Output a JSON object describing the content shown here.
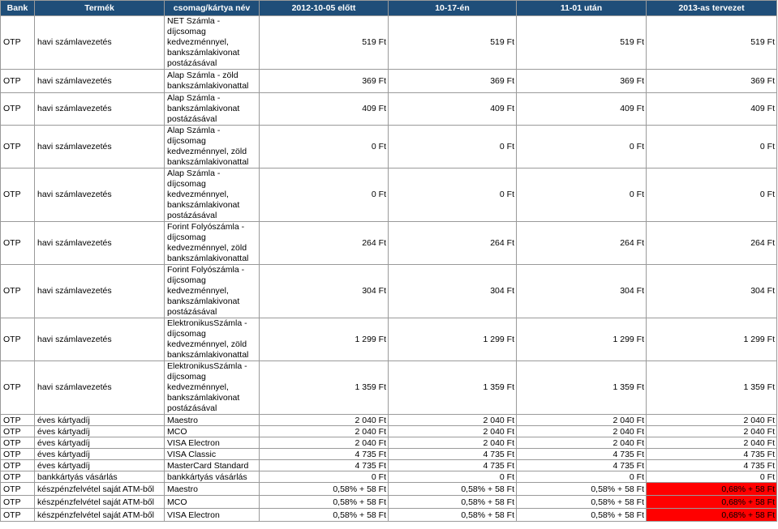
{
  "colors": {
    "header_bg": "#1f4e79",
    "header_fg": "#ffffff",
    "highlight": "#ff0000"
  },
  "headers": [
    "Bank",
    "Termék",
    "csomag/kártya név",
    "2012-10-05 előtt",
    "10-17-én",
    "11-01 után",
    "2013-as tervezet"
  ],
  "rows": [
    {
      "bank": "OTP",
      "product": "havi számlavezetés",
      "name": "NET Számla - díjcsomag kedvezménnyel, bankszámlakivonat postázásával",
      "v1": "519 Ft",
      "v2": "519 Ft",
      "v3": "519 Ft",
      "v4": "519 Ft"
    },
    {
      "bank": "OTP",
      "product": "havi számlavezetés",
      "name": "Alap Számla - zöld bankszámlakivonattal",
      "v1": "369 Ft",
      "v2": "369 Ft",
      "v3": "369 Ft",
      "v4": "369 Ft"
    },
    {
      "bank": "OTP",
      "product": "havi számlavezetés",
      "name": "Alap Számla - bankszámlakivonat postázásával",
      "v1": "409 Ft",
      "v2": "409 Ft",
      "v3": "409 Ft",
      "v4": "409 Ft"
    },
    {
      "bank": "OTP",
      "product": "havi számlavezetés",
      "name": "Alap Számla - díjcsomag kedvezménnyel, zöld bankszámlakivonattal",
      "v1": "0 Ft",
      "v2": "0 Ft",
      "v3": "0 Ft",
      "v4": "0 Ft"
    },
    {
      "bank": "OTP",
      "product": "havi számlavezetés",
      "name": "Alap Számla - díjcsomag kedvezménnyel, bankszámlakivonat postázásával",
      "v1": "0 Ft",
      "v2": "0 Ft",
      "v3": "0 Ft",
      "v4": "0 Ft"
    },
    {
      "bank": "OTP",
      "product": "havi számlavezetés",
      "name": "Forint Folyószámla - díjcsomag kedvezménnyel, zöld bankszámlakivonattal",
      "v1": "264 Ft",
      "v2": "264 Ft",
      "v3": "264 Ft",
      "v4": "264 Ft"
    },
    {
      "bank": "OTP",
      "product": "havi számlavezetés",
      "name": "Forint Folyószámla - díjcsomag kedvezménnyel, bankszámlakivonat postázásával",
      "v1": "304 Ft",
      "v2": "304 Ft",
      "v3": "304 Ft",
      "v4": "304 Ft"
    },
    {
      "bank": "OTP",
      "product": "havi számlavezetés",
      "name": "ElektronikusSzámla - díjcsomag kedvezménnyel, zöld bankszámlakivonattal",
      "v1": "1 299 Ft",
      "v2": "1 299 Ft",
      "v3": "1 299 Ft",
      "v4": "1 299 Ft"
    },
    {
      "bank": "OTP",
      "product": "havi számlavezetés",
      "name": "ElektronikusSzámla - díjcsomag kedvezménnyel, bankszámlakivonat postázásával",
      "v1": "1 359 Ft",
      "v2": "1 359 Ft",
      "v3": "1 359 Ft",
      "v4": "1 359 Ft"
    },
    {
      "bank": "OTP",
      "product": "éves kártyadíj",
      "name": "Maestro",
      "v1": "2 040 Ft",
      "v2": "2 040 Ft",
      "v3": "2 040 Ft",
      "v4": "2 040 Ft"
    },
    {
      "bank": "OTP",
      "product": "éves kártyadíj",
      "name": "MCO",
      "v1": "2 040 Ft",
      "v2": "2 040 Ft",
      "v3": "2 040 Ft",
      "v4": "2 040 Ft"
    },
    {
      "bank": "OTP",
      "product": "éves kártyadíj",
      "name": "VISA Electron",
      "v1": "2 040 Ft",
      "v2": "2 040 Ft",
      "v3": "2 040 Ft",
      "v4": "2 040 Ft"
    },
    {
      "bank": "OTP",
      "product": "éves kártyadíj",
      "name": "VISA Classic",
      "v1": "4 735 Ft",
      "v2": "4 735 Ft",
      "v3": "4 735 Ft",
      "v4": "4 735 Ft"
    },
    {
      "bank": "OTP",
      "product": "éves kártyadíj",
      "name": "MasterCard Standard",
      "v1": "4 735 Ft",
      "v2": "4 735 Ft",
      "v3": "4 735 Ft",
      "v4": "4 735 Ft"
    },
    {
      "bank": "OTP",
      "product": "bankkártyás vásárlás",
      "name": "bankkártyás vásárlás",
      "v1": "0 Ft",
      "v2": "0 Ft",
      "v3": "0 Ft",
      "v4": "0 Ft"
    },
    {
      "bank": "OTP",
      "product": "készpénzfelvétel saját ATM-ből",
      "name": "Maestro",
      "v1": "0,58% + 58 Ft",
      "v2": "0,58% + 58 Ft",
      "v3": "0,58% + 58 Ft",
      "v4": "0,68% + 58 Ft",
      "highlight": true
    },
    {
      "bank": "OTP",
      "product": "készpénzfelvétel saját ATM-ből",
      "name": "MCO",
      "v1": "0,58% + 58 Ft",
      "v2": "0,58% + 58 Ft",
      "v3": "0,58% + 58 Ft",
      "v4": "0,68% + 58 Ft",
      "highlight": true
    },
    {
      "bank": "OTP",
      "product": "készpénzfelvétel saját ATM-ből",
      "name": "VISA Electron",
      "v1": "0,58% + 58 Ft",
      "v2": "0,58% + 58 Ft",
      "v3": "0,58% + 58 Ft",
      "v4": "0,68% + 58 Ft",
      "highlight": true
    }
  ]
}
